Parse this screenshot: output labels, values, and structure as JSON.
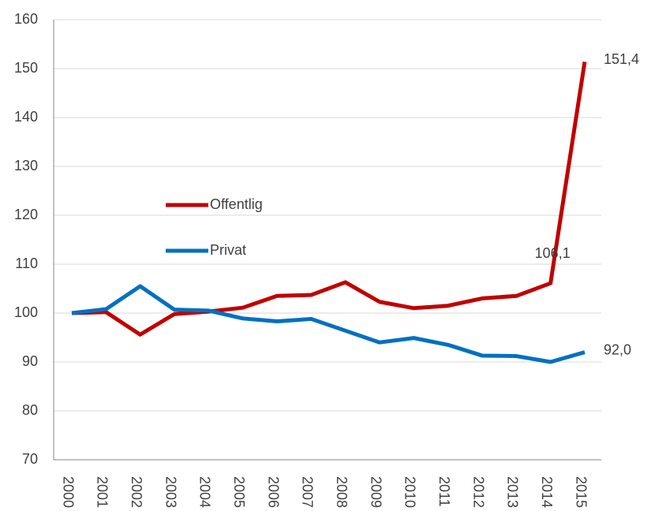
{
  "chart_data": {
    "type": "line",
    "categories": [
      "2000",
      "2001",
      "2002",
      "2003",
      "2004",
      "2005",
      "2006",
      "2007",
      "2008",
      "2009",
      "2010",
      "2011",
      "2012",
      "2013",
      "2014",
      "2015"
    ],
    "series": [
      {
        "name": "Offentlig",
        "color": "#c00000",
        "values": [
          100,
          100.2,
          95.6,
          99.8,
          100.3,
          101.1,
          103.5,
          103.7,
          106.3,
          102.3,
          101.0,
          101.5,
          103.0,
          103.5,
          106.1,
          151.4
        ],
        "value_labels": [
          null,
          null,
          null,
          null,
          null,
          null,
          null,
          null,
          null,
          null,
          null,
          null,
          null,
          null,
          "106,1",
          "151,4"
        ]
      },
      {
        "name": "Privat",
        "color": "#0070c0",
        "values": [
          100,
          100.8,
          105.5,
          100.7,
          100.5,
          98.9,
          98.3,
          98.8,
          96.4,
          94.0,
          94.9,
          93.5,
          91.3,
          91.2,
          90.0,
          92.0
        ],
        "value_labels": [
          null,
          null,
          null,
          null,
          null,
          null,
          null,
          null,
          null,
          null,
          null,
          null,
          null,
          null,
          null,
          "92,0"
        ]
      }
    ],
    "ylim": [
      70,
      160
    ],
    "yticks": [
      70,
      80,
      90,
      100,
      110,
      120,
      130,
      140,
      150,
      160
    ],
    "grid": true
  }
}
